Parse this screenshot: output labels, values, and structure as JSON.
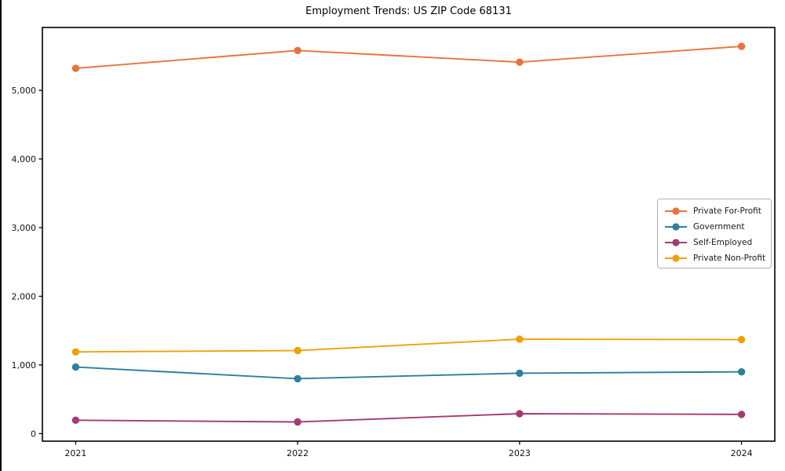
{
  "window": {
    "background_color": "#ffffff",
    "edge_color": "#000000"
  },
  "chart_data": {
    "type": "line",
    "title": "Employment Trends: US ZIP Code 68131",
    "xlabel": "",
    "ylabel": "",
    "grid": false,
    "legend_position": "center right",
    "x": [
      2021,
      2022,
      2023,
      2024
    ],
    "x_tick_labels": [
      "2021",
      "2022",
      "2023",
      "2024"
    ],
    "y_tick_values": [
      0,
      1000,
      2000,
      3000,
      4000,
      5000
    ],
    "y_tick_labels": [
      "0",
      "1,000",
      "2,000",
      "3,000",
      "4,000",
      "5,000"
    ],
    "xlim": [
      2020.85,
      2024.15
    ],
    "ylim": [
      -110,
      5915
    ],
    "axis_color": "#000000",
    "series": [
      {
        "name": "Private For-Profit",
        "color": "#E8743B",
        "values": [
          5320,
          5580,
          5410,
          5640
        ]
      },
      {
        "name": "Government",
        "color": "#2E7E9E",
        "values": [
          970,
          800,
          880,
          900
        ]
      },
      {
        "name": "Self-Employed",
        "color": "#A23B72",
        "values": [
          195,
          170,
          290,
          280
        ]
      },
      {
        "name": "Private Non-Profit",
        "color": "#F0A00A",
        "values": [
          1190,
          1210,
          1375,
          1370
        ]
      }
    ]
  }
}
